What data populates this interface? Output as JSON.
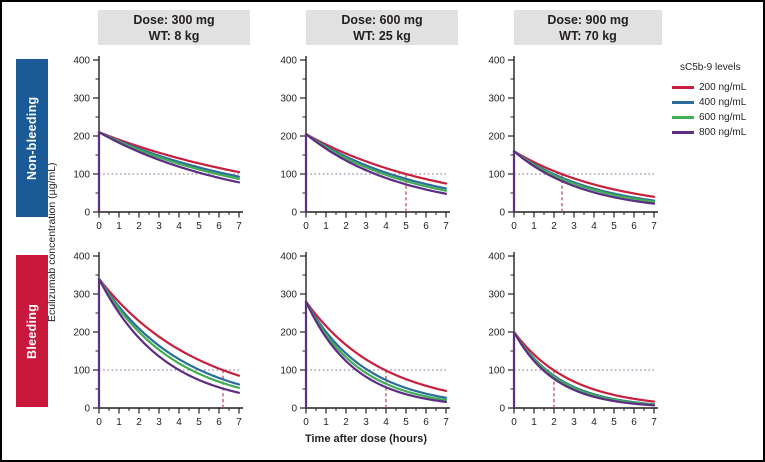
{
  "figure": {
    "ylabel": "Eculizumab concentration (µg/mL)",
    "xlabel": "Time after dose (hours)",
    "col_headers": [
      {
        "line1": "Dose: 300 mg",
        "line2": "WT: 8 kg"
      },
      {
        "line1": "Dose: 600 mg",
        "line2": "WT: 25 kg"
      },
      {
        "line1": "Dose: 900 mg",
        "line2": "WT: 70 kg"
      }
    ],
    "row_labels": [
      {
        "label": "Non-bleeding",
        "color": "#1a5b97"
      },
      {
        "label": "Bleeding",
        "color": "#c8193c"
      }
    ],
    "legend": {
      "title": "sC5b-9 levels"
    }
  },
  "chart_data": {
    "type": "line",
    "layout": "2 rows (Non-bleeding, Bleeding) x 3 columns (dose/weight) small multiples",
    "xlabel": "Time after dose (hours)",
    "ylabel": "Eculizumab concentration (µg/mL)",
    "xlim": [
      0,
      7
    ],
    "ylim": [
      0,
      400
    ],
    "xticks": [
      0,
      1,
      2,
      3,
      4,
      5,
      6,
      7
    ],
    "xticks_minor": [
      0.5,
      1.5,
      2.5,
      3.5,
      4.5,
      5.5,
      6.5
    ],
    "yticks": [
      0,
      100,
      200,
      300,
      400
    ],
    "yticks_minor": [
      50,
      150,
      250,
      350
    ],
    "grid": false,
    "legend_position": "right",
    "series": [
      {
        "name": "200 ng/mL",
        "color": "#c8203c"
      },
      {
        "name": "400 ng/mL",
        "color": "#2d6d9b"
      },
      {
        "name": "600 ng/mL",
        "color": "#3fae55"
      },
      {
        "name": "800 ng/mL",
        "color": "#5e2d84"
      }
    ],
    "reference_line_y": 100,
    "reference_line_color": "#9c86a6",
    "vline_color": "#c4495e",
    "model": "curves decay exponentially from start_conc at t=0 h to end_conc_at_7h at t=7 h; vline_x marks the time the 200 ng/mL (red) curve crosses 100 µg/mL",
    "panels": [
      {
        "id": "non-bleeding-dose-300mg-wt-8kg",
        "row": "Non-bleeding",
        "dose": "300 mg",
        "wt": "8 kg",
        "start_conc": 210,
        "end_conc_at_7h": [
          105,
          93,
          87,
          78
        ],
        "vline_x": null
      },
      {
        "id": "non-bleeding-dose-600mg-wt-25kg",
        "row": "Non-bleeding",
        "dose": "600 mg",
        "wt": "25 kg",
        "start_conc": 205,
        "end_conc_at_7h": [
          75,
          62,
          56,
          48
        ],
        "vline_x": 5
      },
      {
        "id": "non-bleeding-dose-900mg-wt-70kg",
        "row": "Non-bleeding",
        "dose": "900 mg",
        "wt": "70 kg",
        "start_conc": 160,
        "end_conc_at_7h": [
          40,
          30,
          27,
          22
        ],
        "vline_x": 2.4
      },
      {
        "id": "bleeding-dose-300mg-wt-8kg",
        "row": "Bleeding",
        "dose": "300 mg",
        "wt": "8 kg",
        "start_conc": 340,
        "end_conc_at_7h": [
          85,
          62,
          53,
          40
        ],
        "vline_x": 6.2
      },
      {
        "id": "bleeding-dose-600mg-wt-25kg",
        "row": "Bleeding",
        "dose": "600 mg",
        "wt": "25 kg",
        "start_conc": 280,
        "end_conc_at_7h": [
          45,
          27,
          21,
          16
        ],
        "vline_x": 4
      },
      {
        "id": "bleeding-dose-900mg-wt-70kg",
        "row": "Bleeding",
        "dose": "900 mg",
        "wt": "70 kg",
        "start_conc": 200,
        "end_conc_at_7h": [
          17,
          10,
          9,
          7
        ],
        "vline_x": 2
      }
    ]
  }
}
